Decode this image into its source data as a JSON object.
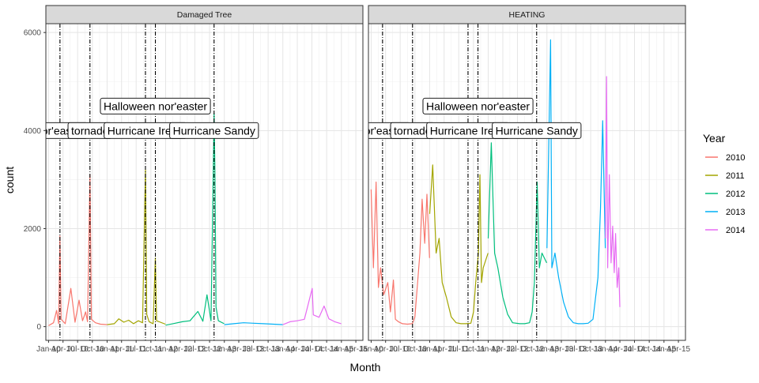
{
  "chart_data": {
    "type": "line",
    "xlabel": "Month",
    "ylabel": "count",
    "ylim": [
      -280,
      6180
    ],
    "yticks": [
      0,
      2000,
      4000,
      6000
    ],
    "grid": true,
    "legend": {
      "title": "Year",
      "position": "right",
      "entries": [
        {
          "label": "2010",
          "color": "#F8766D"
        },
        {
          "label": "2011",
          "color": "#A3A500"
        },
        {
          "label": "2012",
          "color": "#00BF7D"
        },
        {
          "label": "2013",
          "color": "#00B0F6"
        },
        {
          "label": "2014",
          "color": "#E76BF3"
        }
      ]
    },
    "xlim": [
      "2009-12-15",
      "2015-05-15"
    ],
    "x_tick_labels": [
      "Jan-10",
      "Apr-10",
      "Jul-10",
      "Oct-10",
      "Jan-11",
      "Apr-11",
      "Jul-11",
      "Oct-11",
      "Jan-12",
      "Apr-12",
      "Jul-12",
      "Oct-12",
      "Jan-13",
      "Apr-13",
      "Jul-13",
      "Oct-13",
      "Jan-14",
      "Apr-14",
      "Jul-14",
      "Oct-14",
      "Jan-15",
      "Apr-15"
    ],
    "events": [
      {
        "label": "nor'easter",
        "date": "2010-03-13",
        "label_y": 4000
      },
      {
        "label": "tornado",
        "date": "2010-09-16",
        "label_y": 4000
      },
      {
        "label": "Hurricane Irene",
        "date": "2011-08-28",
        "label_y": 4000
      },
      {
        "label": "Halloween nor'easter",
        "date": "2011-10-29",
        "label_y": 4500
      },
      {
        "label": "Hurricane Sandy",
        "date": "2012-10-29",
        "label_y": 4000
      }
    ],
    "panels": [
      {
        "title": "Damaged Tree",
        "series": [
          {
            "name": "2010",
            "color": "#F8766D",
            "points": [
              [
                "2010-01-01",
                20
              ],
              [
                "2010-02-01",
                80
              ],
              [
                "2010-02-20",
                330
              ],
              [
                "2010-03-05",
                60
              ],
              [
                "2010-03-13",
                1850
              ],
              [
                "2010-03-20",
                150
              ],
              [
                "2010-04-15",
                60
              ],
              [
                "2010-05-20",
                780
              ],
              [
                "2010-06-15",
                90
              ],
              [
                "2010-07-10",
                540
              ],
              [
                "2010-08-01",
                120
              ],
              [
                "2010-08-20",
                300
              ],
              [
                "2010-09-01",
                100
              ],
              [
                "2010-09-16",
                3100
              ],
              [
                "2010-09-25",
                150
              ],
              [
                "2010-10-20",
                80
              ],
              [
                "2010-11-20",
                50
              ],
              [
                "2010-12-31",
                40
              ]
            ]
          },
          {
            "name": "2011",
            "color": "#A3A500",
            "points": [
              [
                "2011-01-01",
                40
              ],
              [
                "2011-02-15",
                60
              ],
              [
                "2011-03-15",
                160
              ],
              [
                "2011-04-15",
                90
              ],
              [
                "2011-05-15",
                130
              ],
              [
                "2011-06-15",
                60
              ],
              [
                "2011-07-15",
                120
              ],
              [
                "2011-08-10",
                80
              ],
              [
                "2011-08-28",
                3200
              ],
              [
                "2011-09-05",
                250
              ],
              [
                "2011-09-20",
                100
              ],
              [
                "2011-10-15",
                60
              ],
              [
                "2011-10-29",
                1400
              ],
              [
                "2011-11-05",
                120
              ],
              [
                "2011-12-31",
                50
              ]
            ]
          },
          {
            "name": "2012",
            "color": "#00BF7D",
            "points": [
              [
                "2012-01-01",
                30
              ],
              [
                "2012-02-15",
                60
              ],
              [
                "2012-04-15",
                100
              ],
              [
                "2012-06-01",
                120
              ],
              [
                "2012-07-20",
                310
              ],
              [
                "2012-08-20",
                110
              ],
              [
                "2012-09-15",
                650
              ],
              [
                "2012-10-10",
                120
              ],
              [
                "2012-10-29",
                4350
              ],
              [
                "2012-11-03",
                3200
              ],
              [
                "2012-11-10",
                400
              ],
              [
                "2012-11-25",
                120
              ],
              [
                "2012-12-31",
                60
              ]
            ]
          },
          {
            "name": "2013",
            "color": "#00B0F6",
            "points": [
              [
                "2013-01-01",
                40
              ],
              [
                "2013-03-01",
                60
              ],
              [
                "2013-05-01",
                80
              ],
              [
                "2013-07-01",
                70
              ],
              [
                "2013-09-01",
                60
              ],
              [
                "2013-11-01",
                50
              ],
              [
                "2013-12-31",
                40
              ]
            ]
          },
          {
            "name": "2014",
            "color": "#E76BF3",
            "points": [
              [
                "2014-01-01",
                40
              ],
              [
                "2014-02-15",
                100
              ],
              [
                "2014-04-01",
                120
              ],
              [
                "2014-05-15",
                150
              ],
              [
                "2014-07-03",
                780
              ],
              [
                "2014-07-10",
                240
              ],
              [
                "2014-08-15",
                190
              ],
              [
                "2014-09-15",
                420
              ],
              [
                "2014-10-15",
                160
              ],
              [
                "2014-11-20",
                100
              ],
              [
                "2014-12-31",
                60
              ]
            ]
          }
        ]
      },
      {
        "title": "HEATING",
        "series": [
          {
            "name": "2010",
            "color": "#F8766D",
            "points": [
              [
                "2010-01-01",
                2800
              ],
              [
                "2010-01-15",
                1200
              ],
              [
                "2010-02-01",
                2950
              ],
              [
                "2010-02-15",
                800
              ],
              [
                "2010-03-01",
                1200
              ],
              [
                "2010-03-20",
                650
              ],
              [
                "2010-04-15",
                900
              ],
              [
                "2010-05-01",
                300
              ],
              [
                "2010-05-20",
                950
              ],
              [
                "2010-06-01",
                150
              ],
              [
                "2010-06-20",
                100
              ],
              [
                "2010-07-15",
                60
              ],
              [
                "2010-08-15",
                50
              ],
              [
                "2010-09-15",
                60
              ],
              [
                "2010-10-01",
                200
              ],
              [
                "2010-10-15",
                800
              ],
              [
                "2010-11-01",
                1500
              ],
              [
                "2010-11-15",
                2600
              ],
              [
                "2010-12-01",
                1700
              ],
              [
                "2010-12-15",
                2700
              ],
              [
                "2010-12-31",
                1400
              ]
            ]
          },
          {
            "name": "2011",
            "color": "#A3A500",
            "points": [
              [
                "2011-01-01",
                2300
              ],
              [
                "2011-01-20",
                3300
              ],
              [
                "2011-02-10",
                1500
              ],
              [
                "2011-03-01",
                1800
              ],
              [
                "2011-03-20",
                900
              ],
              [
                "2011-04-15",
                600
              ],
              [
                "2011-05-15",
                200
              ],
              [
                "2011-06-15",
                80
              ],
              [
                "2011-07-15",
                60
              ],
              [
                "2011-08-15",
                60
              ],
              [
                "2011-09-15",
                70
              ],
              [
                "2011-10-01",
                300
              ],
              [
                "2011-10-15",
                900
              ],
              [
                "2011-11-01",
                1500
              ],
              [
                "2011-11-10",
                3100
              ],
              [
                "2011-11-20",
                900
              ],
              [
                "2011-12-01",
                1200
              ],
              [
                "2011-12-31",
                1500
              ]
            ]
          },
          {
            "name": "2012",
            "color": "#00BF7D",
            "points": [
              [
                "2012-01-01",
                1800
              ],
              [
                "2012-01-20",
                3750
              ],
              [
                "2012-02-10",
                1500
              ],
              [
                "2012-03-01",
                1200
              ],
              [
                "2012-04-01",
                600
              ],
              [
                "2012-05-01",
                250
              ],
              [
                "2012-06-01",
                80
              ],
              [
                "2012-07-15",
                60
              ],
              [
                "2012-08-15",
                60
              ],
              [
                "2012-09-15",
                80
              ],
              [
                "2012-10-01",
                300
              ],
              [
                "2012-10-15",
                900
              ],
              [
                "2012-11-01",
                2950
              ],
              [
                "2012-11-15",
                1200
              ],
              [
                "2012-12-01",
                1500
              ],
              [
                "2012-12-31",
                1300
              ]
            ]
          },
          {
            "name": "2013",
            "color": "#00B0F6",
            "points": [
              [
                "2013-01-01",
                1600
              ],
              [
                "2013-01-24",
                5850
              ],
              [
                "2013-02-01",
                1200
              ],
              [
                "2013-02-20",
                1500
              ],
              [
                "2013-03-15",
                1000
              ],
              [
                "2013-04-15",
                500
              ],
              [
                "2013-05-15",
                200
              ],
              [
                "2013-06-15",
                80
              ],
              [
                "2013-07-15",
                60
              ],
              [
                "2013-08-15",
                60
              ],
              [
                "2013-09-15",
                70
              ],
              [
                "2013-10-15",
                150
              ],
              [
                "2013-11-15",
                1000
              ],
              [
                "2013-12-01",
                2400
              ],
              [
                "2013-12-15",
                4200
              ],
              [
                "2013-12-31",
                1600
              ]
            ]
          },
          {
            "name": "2014",
            "color": "#E76BF3",
            "points": [
              [
                "2014-01-01",
                1800
              ],
              [
                "2014-01-08",
                5100
              ],
              [
                "2014-01-15",
                1200
              ],
              [
                "2014-01-25",
                3100
              ],
              [
                "2014-02-05",
                1300
              ],
              [
                "2014-02-15",
                2050
              ],
              [
                "2014-02-25",
                1100
              ],
              [
                "2014-03-05",
                1900
              ],
              [
                "2014-03-15",
                800
              ],
              [
                "2014-03-25",
                1200
              ],
              [
                "2014-04-01",
                400
              ]
            ]
          }
        ]
      }
    ]
  }
}
